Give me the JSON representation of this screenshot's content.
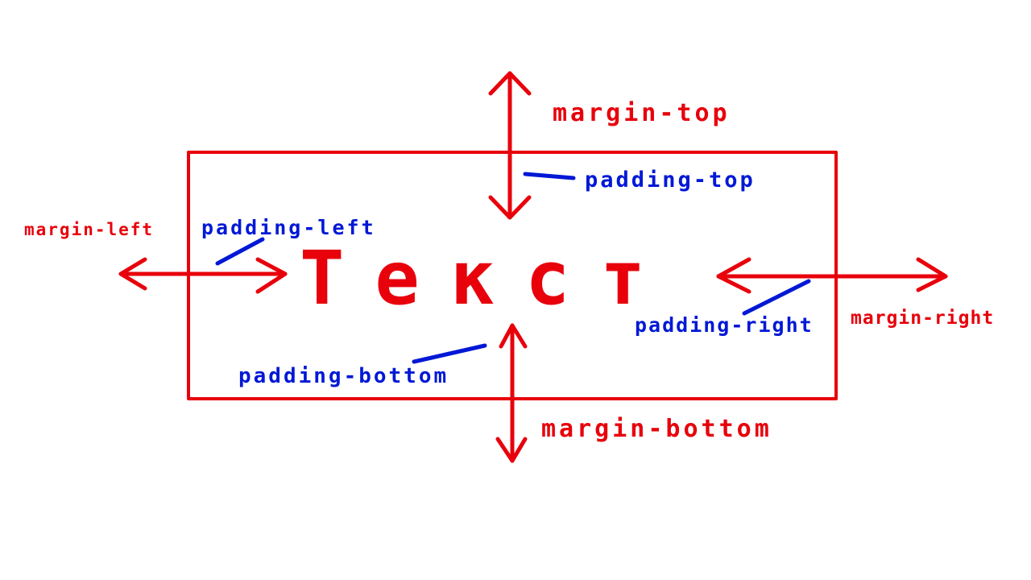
{
  "colors": {
    "margin": "#e8000b",
    "padding": "#0018d6",
    "background": "#ffffff"
  },
  "diagram": {
    "content_text": "Текст",
    "margin_labels": {
      "top": "margin-top",
      "left": "margin-left",
      "right": "margin-right",
      "bottom": "margin-bottom"
    },
    "padding_labels": {
      "top": "padding-top",
      "left": "padding-left",
      "right": "padding-right",
      "bottom": "padding-bottom"
    }
  }
}
